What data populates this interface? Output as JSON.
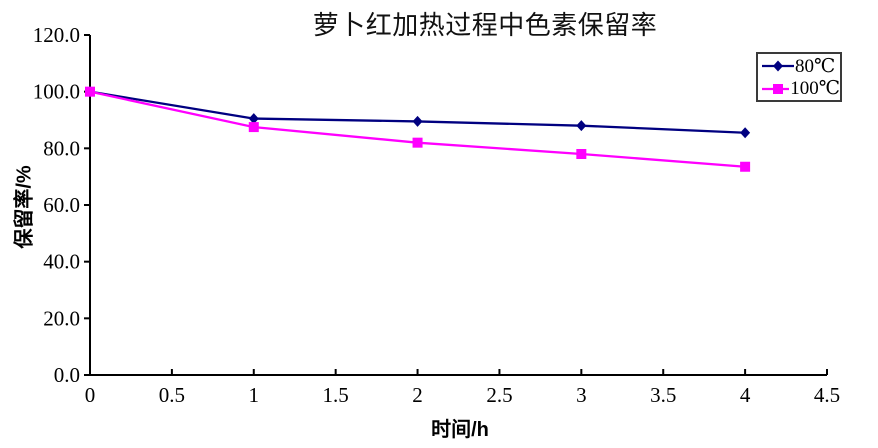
{
  "accent_colors": {
    "series_80c": "#000080",
    "series_100c": "#FF00FF",
    "axis": "#000000",
    "background": "#FFFFFF"
  },
  "chart_data": {
    "type": "line",
    "title": "萝卜红加热过程中色素保留率",
    "xlabel": "时间/h",
    "ylabel": "保留率/%",
    "x": [
      0,
      1,
      2,
      3,
      4
    ],
    "series": [
      {
        "name": "80℃",
        "color": "#000080",
        "marker": "diamond",
        "values": [
          100,
          90.5,
          89.5,
          88,
          85.5
        ]
      },
      {
        "name": "100℃",
        "color": "#FF00FF",
        "marker": "square",
        "values": [
          100,
          87.5,
          82,
          78,
          73.5
        ]
      }
    ],
    "xaxis": {
      "min": 0,
      "max": 4.5,
      "step": 0.5,
      "tick_values": [
        0,
        0.5,
        1,
        1.5,
        2,
        2.5,
        3,
        3.5,
        4,
        4.5
      ],
      "tick_labels": [
        "0",
        "0.5",
        "1",
        "1.5",
        "2",
        "2.5",
        "3",
        "3.5",
        "4",
        "4.5"
      ]
    },
    "yaxis": {
      "min": 0,
      "max": 120,
      "step": 20,
      "tick_values": [
        0,
        20,
        40,
        60,
        80,
        100,
        120
      ],
      "tick_labels": [
        "0.0",
        "20.0",
        "40.0",
        "60.0",
        "80.0",
        "100.0",
        "120.0"
      ]
    },
    "grid": false,
    "legend_position": "top-right"
  }
}
